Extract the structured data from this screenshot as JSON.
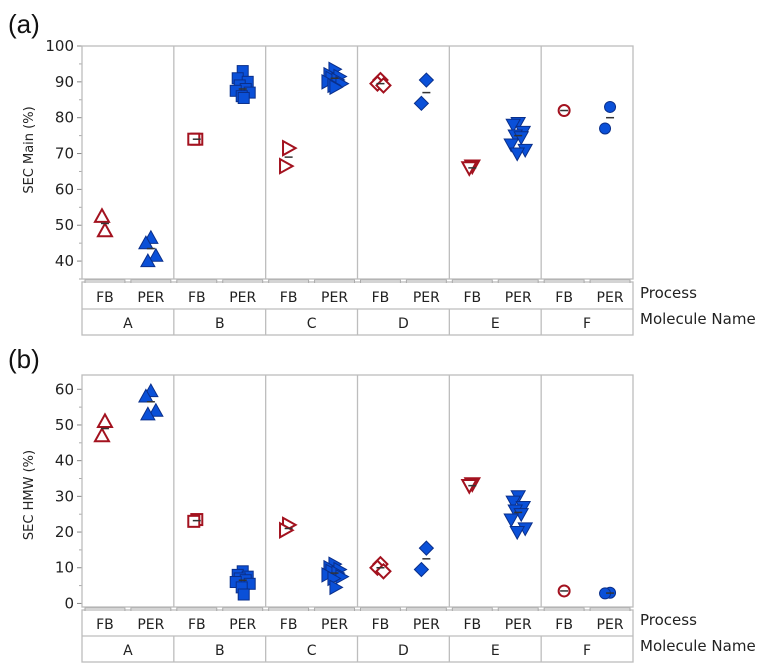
{
  "colors": {
    "fb": "#a3121f",
    "per": "#0a50d8",
    "per_stroke": "#0a2f8a",
    "frame": "#bdbdbd",
    "text": "#222222"
  },
  "chart_data": [
    {
      "panel": "(a)",
      "type": "scatter",
      "ylabel": "SEC Main (%)",
      "ylim": [
        35,
        100
      ],
      "yticks": [
        40,
        50,
        60,
        70,
        80,
        90,
        100
      ],
      "grid": false,
      "x_level1_title": "Process",
      "x_level2_title": "Molecule Name",
      "molecules": [
        "A",
        "B",
        "C",
        "D",
        "E",
        "F"
      ],
      "processes": [
        "FB",
        "PER"
      ],
      "markers": {
        "A": "triangle-up",
        "B": "square",
        "C": "triangle-right",
        "D": "diamond",
        "E": "triangle-down",
        "F": "circle"
      },
      "series": [
        {
          "molecule": "A",
          "process": "FB",
          "values": [
            48.5,
            52.5
          ],
          "mean": 50.5
        },
        {
          "molecule": "A",
          "process": "PER",
          "values": [
            46.5,
            45,
            41.5,
            40
          ],
          "mean": 43.5
        },
        {
          "molecule": "B",
          "process": "FB",
          "values": [
            74,
            74
          ],
          "mean": 74
        },
        {
          "molecule": "B",
          "process": "PER",
          "values": [
            93,
            91,
            90,
            89,
            88,
            87.5,
            87,
            86,
            85.5
          ],
          "mean": 88
        },
        {
          "molecule": "C",
          "process": "FB",
          "values": [
            71.5,
            66.5
          ],
          "mean": 69
        },
        {
          "molecule": "C",
          "process": "PER",
          "values": [
            93.5,
            92,
            91.5,
            91,
            90.5,
            90,
            89.5,
            89,
            88.5
          ],
          "mean": 91
        },
        {
          "molecule": "D",
          "process": "FB",
          "values": [
            90.5,
            89.5,
            89
          ],
          "mean": 89.5
        },
        {
          "molecule": "D",
          "process": "PER",
          "values": [
            90.5,
            84
          ],
          "mean": 87
        },
        {
          "molecule": "E",
          "process": "FB",
          "values": [
            66.5,
            66
          ],
          "mean": 66
        },
        {
          "molecule": "E",
          "process": "PER",
          "values": [
            78.5,
            78,
            76,
            75,
            74.5,
            72.5,
            71,
            70
          ],
          "mean": 75
        },
        {
          "molecule": "F",
          "process": "FB",
          "values": [
            82
          ],
          "mean": 82
        },
        {
          "molecule": "F",
          "process": "PER",
          "values": [
            83,
            77
          ],
          "mean": 80
        }
      ]
    },
    {
      "panel": "(b)",
      "type": "scatter",
      "ylabel": "SEC HMW (%)",
      "ylim": [
        -1,
        64
      ],
      "yticks": [
        0,
        10,
        20,
        30,
        40,
        50,
        60
      ],
      "grid": false,
      "x_level1_title": "Process",
      "x_level2_title": "Molecule Name",
      "molecules": [
        "A",
        "B",
        "C",
        "D",
        "E",
        "F"
      ],
      "processes": [
        "FB",
        "PER"
      ],
      "markers": {
        "A": "triangle-up",
        "B": "square",
        "C": "triangle-right",
        "D": "diamond",
        "E": "triangle-down",
        "F": "circle"
      },
      "series": [
        {
          "molecule": "A",
          "process": "FB",
          "values": [
            51,
            47
          ],
          "mean": 49
        },
        {
          "molecule": "A",
          "process": "PER",
          "values": [
            59.5,
            58,
            54,
            53
          ],
          "mean": 56.5
        },
        {
          "molecule": "B",
          "process": "FB",
          "values": [
            23.5,
            23
          ],
          "mean": 23.2
        },
        {
          "molecule": "B",
          "process": "PER",
          "values": [
            9,
            8,
            7.5,
            7,
            6.5,
            6,
            5.5,
            4.5,
            2.5
          ],
          "mean": 6.5
        },
        {
          "molecule": "C",
          "process": "FB",
          "values": [
            22,
            20.5
          ],
          "mean": 21
        },
        {
          "molecule": "C",
          "process": "PER",
          "values": [
            11,
            10,
            9.5,
            9,
            8.5,
            8,
            7.5,
            7,
            4.5
          ],
          "mean": 8.5
        },
        {
          "molecule": "D",
          "process": "FB",
          "values": [
            11,
            10,
            9
          ],
          "mean": 10
        },
        {
          "molecule": "D",
          "process": "PER",
          "values": [
            15.5,
            9.5
          ],
          "mean": 12.5
        },
        {
          "molecule": "E",
          "process": "FB",
          "values": [
            33.5,
            33
          ],
          "mean": 33
        },
        {
          "molecule": "E",
          "process": "PER",
          "values": [
            30,
            28.5,
            27,
            26,
            25,
            23.5,
            21,
            20
          ],
          "mean": 25.5
        },
        {
          "molecule": "F",
          "process": "FB",
          "values": [
            3.5
          ],
          "mean": 3.5
        },
        {
          "molecule": "F",
          "process": "PER",
          "values": [
            3,
            2.8
          ],
          "mean": 2.9
        }
      ]
    }
  ]
}
